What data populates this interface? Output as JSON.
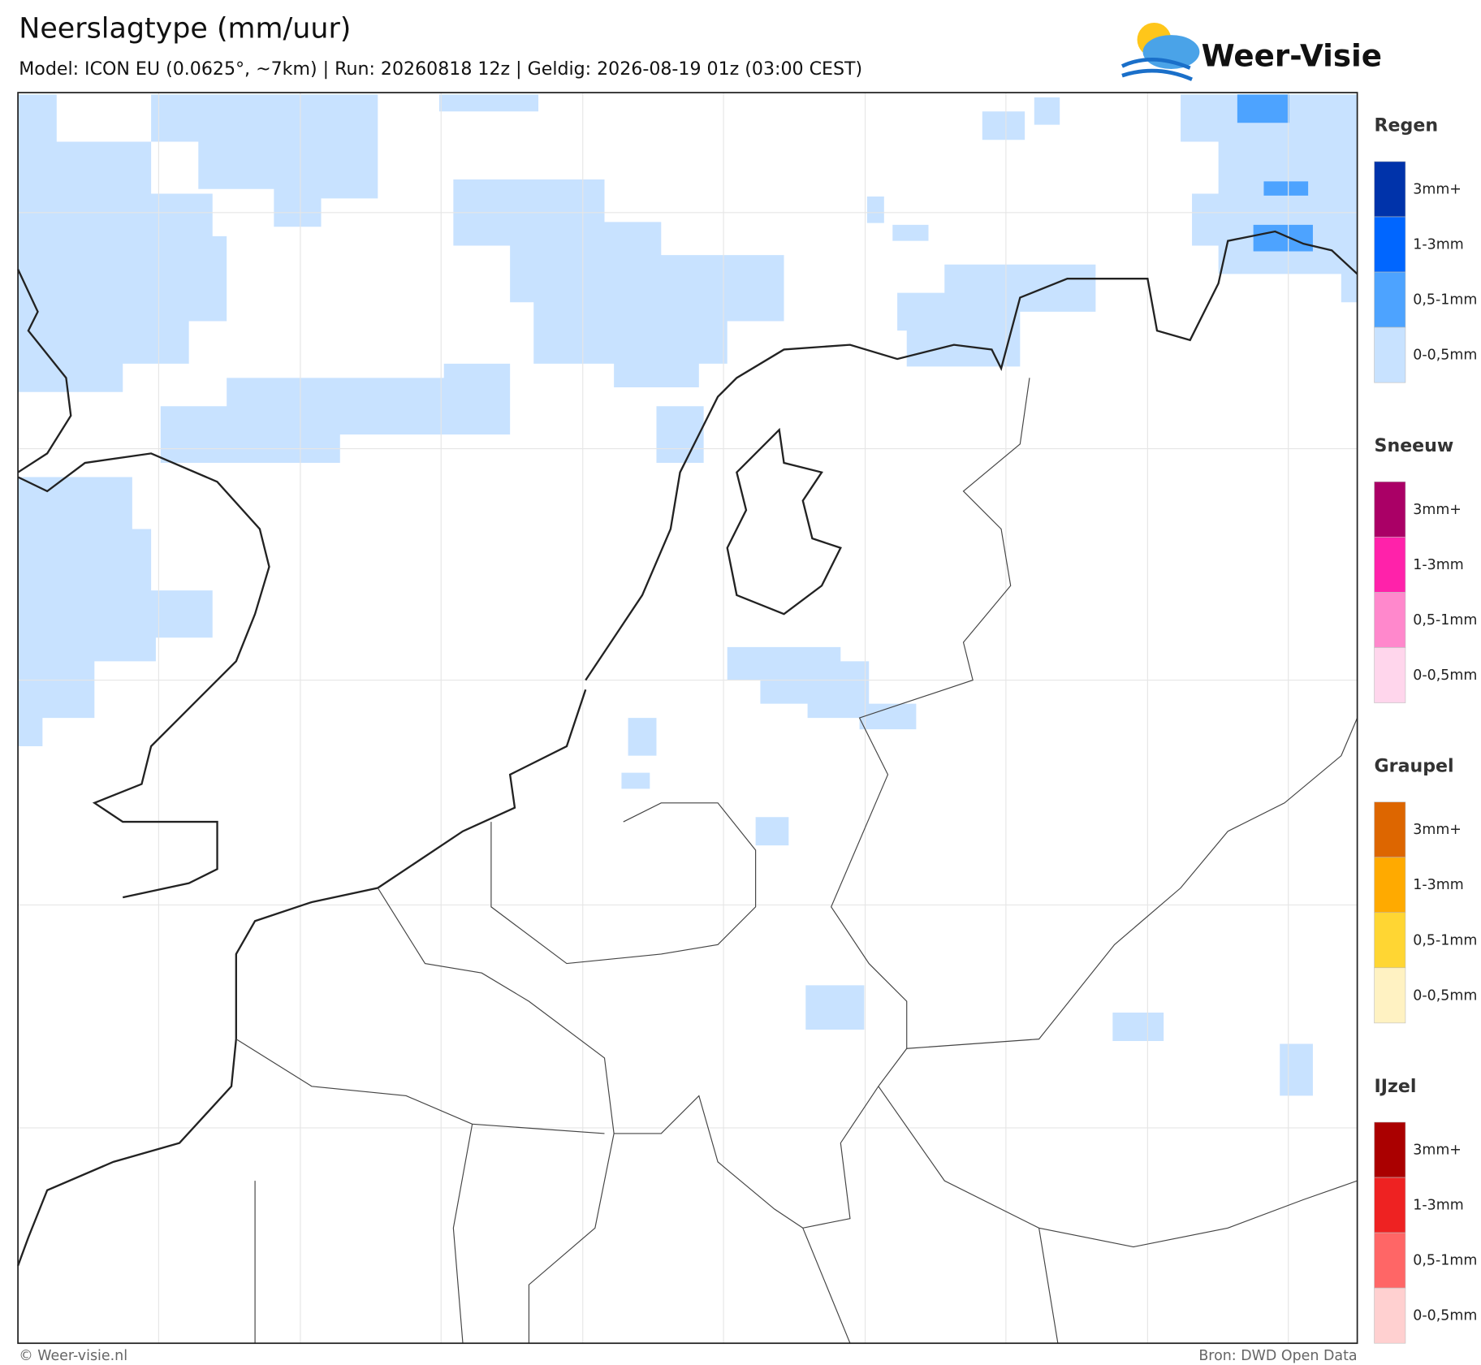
{
  "header": {
    "title": "Neerslagtype (mm/uur)",
    "subtitle": "Model: ICON EU (0.0625°, ~7km)  |  Run: 20260818 12z  |  Geldig: 2026-08-19 01z (03:00 CEST)"
  },
  "logo": {
    "text": "Weer-Visie"
  },
  "legend": [
    {
      "title": "Regen",
      "items": [
        {
          "label": "3mm+",
          "color": "#0033aa"
        },
        {
          "label": "1-3mm",
          "color": "#0066ff"
        },
        {
          "label": "0,5-1mm",
          "color": "#4da3ff"
        },
        {
          "label": "0-0,5mm",
          "color": "#c8e2ff"
        }
      ]
    },
    {
      "title": "Sneeuw",
      "items": [
        {
          "label": "3mm+",
          "color": "#aa0066"
        },
        {
          "label": "1-3mm",
          "color": "#ff22aa"
        },
        {
          "label": "0,5-1mm",
          "color": "#ff88cc"
        },
        {
          "label": "0-0,5mm",
          "color": "#ffd6ec"
        }
      ]
    },
    {
      "title": "Graupel",
      "items": [
        {
          "label": "3mm+",
          "color": "#dd6600"
        },
        {
          "label": "1-3mm",
          "color": "#ffaa00"
        },
        {
          "label": "0,5-1mm",
          "color": "#ffd633"
        },
        {
          "label": "0-0,5mm",
          "color": "#fff2c2"
        }
      ]
    },
    {
      "title": "IJzel",
      "items": [
        {
          "label": "3mm+",
          "color": "#aa0000"
        },
        {
          "label": "1-3mm",
          "color": "#ee2222"
        },
        {
          "label": "0,5-1mm",
          "color": "#ff6666"
        },
        {
          "label": "0-0,5mm",
          "color": "#ffd0d0"
        }
      ]
    }
  ],
  "footer": {
    "left": "© Weer-visie.nl",
    "right": "Bron: DWD Open Data"
  }
}
